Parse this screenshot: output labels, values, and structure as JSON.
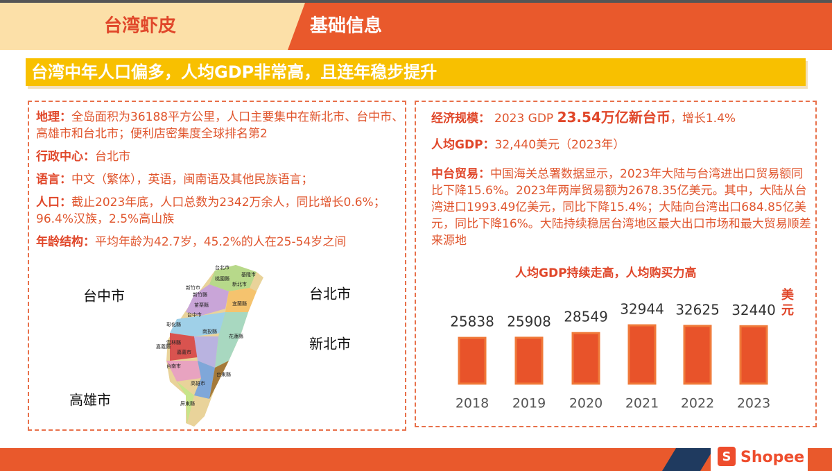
{
  "header": {
    "brand": "台湾虾皮",
    "section": "基础信息"
  },
  "banner": "台湾中年人口偏多，人均GDP非常高，且连年稳步提升",
  "left": {
    "items": [
      {
        "label": "地理：",
        "text": "全岛面积为36188平方公里，人口主要集中在新北市、台中市、高雄市和台北市；便利店密集度全球排名第2"
      },
      {
        "label": "行政中心：",
        "text": "台北市"
      },
      {
        "label": "语言：",
        "text": "中文（繁体），英语，闽南语及其他民族语言；"
      },
      {
        "label": "人口：",
        "text": "截止2023年底，人口总数为2342万余人，同比增长0.6%；96.4%汉族，2.5%高山族"
      },
      {
        "label": "年龄结构：",
        "text": "平均年龄为42.7岁，45.2%的人在25-54岁之间"
      }
    ],
    "map": {
      "cities": [
        "台中市",
        "台北市",
        "新北市",
        "高雄市"
      ],
      "regions": [
        "台北市",
        "基隆市",
        "桃園縣",
        "新北市",
        "新竹縣",
        "新竹市",
        "苗栗縣",
        "宜蘭縣",
        "台中市",
        "彰化縣",
        "南投縣",
        "花蓮縣",
        "雲林縣",
        "嘉義縣",
        "嘉義市",
        "台南市",
        "台東縣",
        "高雄市",
        "屏東縣"
      ]
    }
  },
  "right": {
    "economy": {
      "label": "经济规模：",
      "pre": "2023 GDP",
      "highlight": "23.54万亿新台币",
      "post": "，增长1.4%"
    },
    "gdp": {
      "label": "人均GDP：",
      "text": "32,440美元（2023年）"
    },
    "trade": {
      "label": "中台贸易：",
      "text": "中国海关总署数据显示，2023年大陆与台湾进出口贸易额同比下降15.6%。2023年两岸贸易额为2678.35亿美元。其中，大陆从台湾进口1993.49亿美元，同比下降15.4%；大陆向台湾出口684.85亿美元，同比下降16%。大陆持续稳居台湾地区最大出口市场和最大贸易顺差来源地"
    }
  },
  "chart_data": {
    "type": "bar",
    "title": "人均GDP持续走高，人均购买力高",
    "unit": "美元",
    "categories": [
      "2018",
      "2019",
      "2020",
      "2021",
      "2022",
      "2023"
    ],
    "values": [
      25838,
      25908,
      28549,
      32944,
      32625,
      32440
    ],
    "color": "#e8532a"
  },
  "footer": {
    "logo": "Shopee"
  }
}
